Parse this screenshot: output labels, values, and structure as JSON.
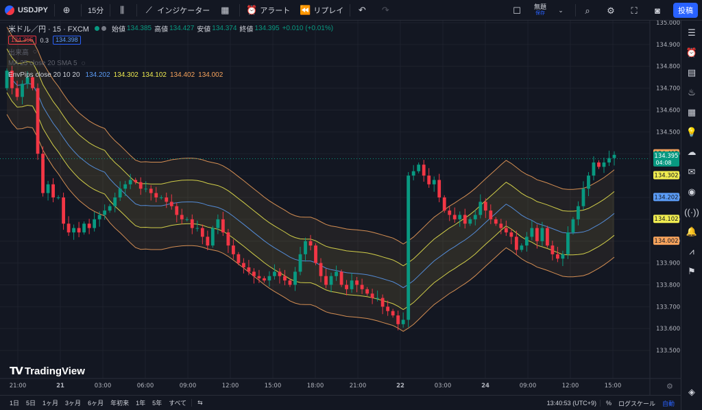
{
  "topbar": {
    "symbol": "USDJPY",
    "interval": "15分",
    "indicators_label": "インジケーター",
    "alert_label": "アラート",
    "replay_label": "リプレイ",
    "save_title": "無題",
    "save_sub": "保存",
    "publish_label": "投稿"
  },
  "legend": {
    "title": "米ドル／円 · 15 · FXCM",
    "open_label": "始値",
    "open": "134.385",
    "high_label": "高値",
    "high": "134.427",
    "low_label": "安値",
    "low": "134.374",
    "close_label": "終値",
    "close": "134.395",
    "change": "+0.010 (+0.01%)",
    "bid": "134.395",
    "spread": "0.3",
    "ask": "134.398",
    "volume_label": "出来高",
    "ma_label": "MA 25 close 20 SMA 5",
    "env_label": "EnvPips close 20 10 20",
    "env_values": [
      "134.202",
      "134.302",
      "134.102",
      "134.402",
      "134.002"
    ]
  },
  "watermark": "TradingView",
  "price_axis": {
    "ticks": [
      "135.000",
      "134.900",
      "134.800",
      "134.700",
      "134.600",
      "134.500",
      "134.400",
      "134.300",
      "134.200",
      "134.100",
      "134.000",
      "133.900",
      "133.800",
      "133.700",
      "133.600",
      "133.500"
    ],
    "current_price": "134.395",
    "countdown": "04:08",
    "band_labels": [
      {
        "value": "134.402",
        "color": "#f7a35c"
      },
      {
        "value": "134.302",
        "color": "#f0ec50"
      },
      {
        "value": "134.202",
        "color": "#5b9cf6"
      },
      {
        "value": "134.102",
        "color": "#f0ec50"
      },
      {
        "value": "134.002",
        "color": "#f7a35c"
      }
    ]
  },
  "time_axis": {
    "ticks": [
      "21:00",
      "21",
      "03:00",
      "06:00",
      "09:00",
      "12:00",
      "15:00",
      "18:00",
      "21:00",
      "22",
      "03:00",
      "24",
      "09:00",
      "12:00",
      "15:00"
    ]
  },
  "bottombar": {
    "ranges": [
      "1日",
      "5日",
      "1ヶ月",
      "3ヶ月",
      "6ヶ月",
      "年初来",
      "1年",
      "5年",
      "すべて"
    ],
    "clock": "13:40:53 (UTC+9)",
    "percent": "%",
    "log_scale": "ログスケール",
    "auto": "自動"
  },
  "colors": {
    "up": "#089981",
    "down": "#f23645",
    "ma": "#5b9cf6",
    "inner_band": "#f0ec50",
    "outer_band": "#f7a35c",
    "background": "#131722"
  },
  "chart_data": {
    "type": "candlestick",
    "y_range": [
      133.45,
      135.0
    ],
    "closes": [
      134.78,
      134.7,
      134.66,
      134.72,
      134.75,
      134.7,
      134.4,
      134.22,
      134.26,
      134.2,
      134.2,
      134.08,
      134.04,
      134.06,
      134.04,
      134.08,
      134.06,
      134.1,
      134.12,
      134.14,
      134.16,
      134.2,
      134.24,
      134.26,
      134.28,
      134.27,
      134.24,
      134.24,
      134.22,
      134.2,
      134.2,
      134.18,
      134.16,
      134.12,
      134.1,
      134.1,
      134.06,
      134.06,
      134.02,
      133.98,
      134.06,
      134.1,
      134.04,
      133.98,
      133.94,
      133.9,
      133.88,
      133.86,
      133.84,
      133.83,
      133.82,
      133.84,
      133.86,
      133.84,
      133.82,
      133.8,
      133.86,
      133.94,
      134.0,
      133.98,
      133.9,
      133.84,
      133.8,
      133.84,
      133.86,
      133.8,
      133.78,
      133.82,
      133.8,
      133.78,
      133.76,
      133.74,
      133.74,
      133.7,
      133.68,
      133.66,
      133.62,
      133.64,
      134.3,
      134.32,
      134.35,
      134.3,
      134.26,
      134.28,
      134.2,
      134.14,
      134.12,
      134.1,
      134.12,
      134.08,
      134.1,
      134.12,
      134.18,
      134.14,
      134.1,
      134.08,
      134.06,
      134.04,
      134.02,
      133.96,
      133.98,
      134.02,
      134.06,
      134.0,
      134.06,
      133.98,
      133.94,
      133.92,
      133.94,
      134.04,
      134.1,
      134.16,
      134.24,
      134.3,
      134.36,
      134.34,
      134.36,
      134.38,
      134.395
    ]
  }
}
